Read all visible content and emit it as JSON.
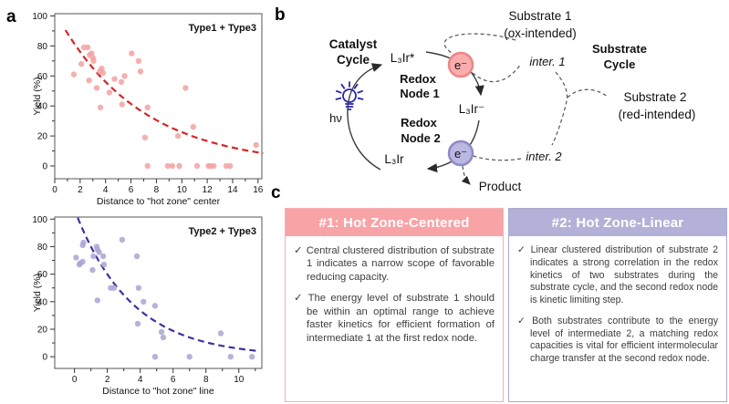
{
  "panels": {
    "a_label": "a",
    "b_label": "b",
    "c_label": "c"
  },
  "chart_data": [
    {
      "type": "scatter",
      "title": "Type1 + Type3",
      "xlabel": "Distance to \"hot zone\" center",
      "ylabel": "Yield (%)",
      "xlim": [
        0,
        16.3
      ],
      "ylim": [
        -8.5,
        101.5
      ],
      "xticks": [
        0,
        2,
        4,
        6,
        8,
        10,
        12,
        14,
        16
      ],
      "xminor": [
        1,
        3,
        5,
        7,
        9,
        11,
        13,
        15
      ],
      "yticks": [
        0,
        20,
        40,
        60,
        80,
        100
      ],
      "yminor": [
        10,
        30,
        50,
        70,
        90
      ],
      "grid": false,
      "point_color": "#F2A2A2",
      "curve_color": "#D62525",
      "curve": {
        "type": "exp_decay",
        "A": 103,
        "k": 0.152,
        "x_start": 0.85,
        "x_end": 16.4
      },
      "points": [
        [
          1.5,
          61
        ],
        [
          2.1,
          68
        ],
        [
          2.3,
          79
        ],
        [
          2.6,
          79
        ],
        [
          2.7,
          57
        ],
        [
          2.75,
          74
        ],
        [
          2.9,
          75
        ],
        [
          3.0,
          72
        ],
        [
          3.05,
          70
        ],
        [
          3.3,
          52
        ],
        [
          3.55,
          63
        ],
        [
          3.7,
          65
        ],
        [
          3.8,
          62
        ],
        [
          3.6,
          39
        ],
        [
          4.3,
          49
        ],
        [
          4.7,
          58
        ],
        [
          5.25,
          56
        ],
        [
          5.3,
          41
        ],
        [
          5.5,
          60
        ],
        [
          6.05,
          75
        ],
        [
          6.6,
          70
        ],
        [
          6.75,
          63
        ],
        [
          7.1,
          19
        ],
        [
          7.3,
          39
        ],
        [
          7.3,
          0
        ],
        [
          8.9,
          0
        ],
        [
          9.25,
          0
        ],
        [
          9.7,
          20
        ],
        [
          9.8,
          0
        ],
        [
          10.3,
          52
        ],
        [
          10.9,
          26
        ],
        [
          11.2,
          0
        ],
        [
          12.1,
          0
        ],
        [
          12.25,
          0
        ],
        [
          12.5,
          0
        ],
        [
          13.5,
          0
        ],
        [
          13.8,
          0
        ],
        [
          15.85,
          14
        ]
      ]
    },
    {
      "type": "scatter",
      "title": "Type2 + Type3",
      "xlabel": "Distance to \"hot zone\" line",
      "ylabel": "Yield (%)",
      "xlim": [
        -1.2,
        11.4
      ],
      "ylim": [
        -8.5,
        101.5
      ],
      "xticks": [
        0,
        2,
        4,
        6,
        8,
        10
      ],
      "xminor": [
        1,
        3,
        5,
        7,
        9,
        11
      ],
      "yticks": [
        0,
        20,
        40,
        60,
        80,
        100
      ],
      "yminor": [
        10,
        30,
        50,
        70,
        90
      ],
      "grid": false,
      "point_color": "#A8A6D4",
      "curve_color": "#41309E",
      "curve": {
        "type": "exp_decay",
        "A": 107,
        "k": 0.29,
        "x_start": 0.2,
        "x_end": 11.2
      },
      "points": [
        [
          0.1,
          72
        ],
        [
          0.3,
          67
        ],
        [
          0.35,
          68
        ],
        [
          0.5,
          69
        ],
        [
          0.5,
          81
        ],
        [
          0.55,
          83
        ],
        [
          1.1,
          63
        ],
        [
          1.15,
          73
        ],
        [
          1.35,
          80
        ],
        [
          1.4,
          78
        ],
        [
          1.4,
          41
        ],
        [
          1.5,
          76
        ],
        [
          1.75,
          73
        ],
        [
          1.8,
          67
        ],
        [
          2.2,
          50
        ],
        [
          2.4,
          50
        ],
        [
          2.9,
          85
        ],
        [
          3.8,
          73
        ],
        [
          3.85,
          24
        ],
        [
          3.9,
          50
        ],
        [
          4.2,
          40
        ],
        [
          4.9,
          37
        ],
        [
          4.9,
          0
        ],
        [
          5.3,
          18
        ],
        [
          5.4,
          14
        ],
        [
          7.0,
          0
        ],
        [
          8.9,
          17
        ],
        [
          9.5,
          0
        ],
        [
          10.8,
          0
        ]
      ]
    }
  ],
  "panel_b": {
    "catalyst_cycle": [
      "Catalyst",
      "Cycle"
    ],
    "substrate_cycle": [
      "Substrate",
      "Cycle"
    ],
    "ir_excited": "L₃Ir*",
    "ir_reduced": "L₃Ir⁻",
    "ir_ground": "L₃Ir",
    "redox_node_1": [
      "Redox",
      "Node 1"
    ],
    "redox_node_2": [
      "Redox",
      "Node 2"
    ],
    "electron": "e⁻",
    "hv": "hν",
    "substrate_1": [
      "Substrate 1",
      "(ox-intended)"
    ],
    "substrate_2": [
      "Substrate 2",
      "(red-intended)"
    ],
    "inter_1": "inter. 1",
    "inter_2": "inter. 2",
    "product": "Product",
    "node1_color": "#F07070",
    "node2_color": "#8B87CB",
    "node1_fill": "#F8AEAE",
    "node1_stroke": "#EE8585",
    "node2_fill": "#BAB7E0",
    "node2_stroke": "#8E8AC8",
    "bulb_color": "#2A28A6"
  },
  "panel_c": {
    "check": "✓",
    "boxes": [
      {
        "title": "#1: Hot Zone-Centered",
        "accent": "#F8A3A6",
        "border": "#F6AFB2",
        "items": [
          "Central clustered distribution of substrate 1 indicates a narrow scope of favorable reducing capacity.",
          "The energy level of substrate 1 should be within an optimal range to achieve faster kinetics for efficient formation of intermediate 1 at the first redox node."
        ]
      },
      {
        "title": "#2: Hot Zone-Linear",
        "accent": "#B4B1D8",
        "border": "#ABA8D2",
        "items": [
          "Linear clustered distribution of substrate 2 indicates a strong correlation in the redox kinetics of two substrates during the substrate cycle, and the second redox node is kinetic limiting step.",
          "Both substrates contribute to the energy level of intermediate 2, a matching redox capacities is vital for efficient intermolecular charge transfer at the second redox node."
        ]
      }
    ]
  }
}
